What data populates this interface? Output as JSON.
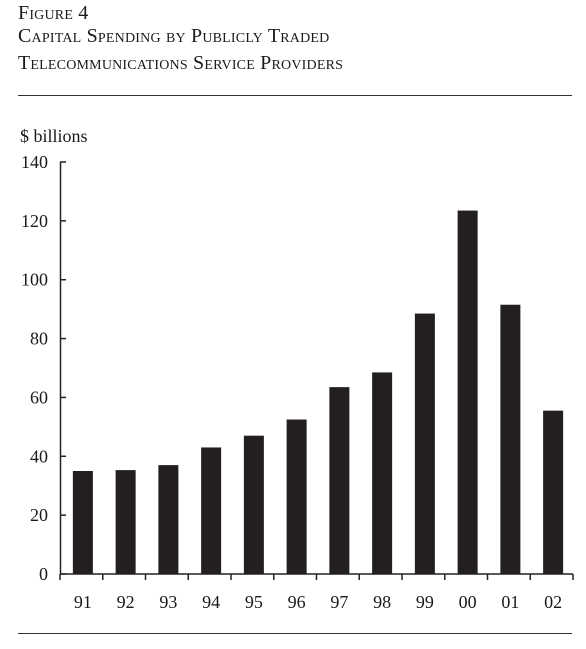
{
  "figure": {
    "label": "Figure 4",
    "title_line_1": "Capital Spending by Publicly Traded",
    "title_line_2": "Telecommunications Service Providers"
  },
  "chart_data": {
    "type": "bar",
    "title": "Capital Spending by Publicly Traded Telecommunications Service Providers",
    "ylabel": "$ billions",
    "xlabel": "",
    "categories": [
      "91",
      "92",
      "93",
      "94",
      "95",
      "96",
      "97",
      "98",
      "99",
      "00",
      "01",
      "02"
    ],
    "values": [
      35,
      35.3,
      37,
      43,
      47,
      52.5,
      63.5,
      68.5,
      88.5,
      123.5,
      91.5,
      55.5
    ],
    "ylim": [
      0,
      140
    ],
    "yticks": [
      0,
      20,
      40,
      60,
      80,
      100,
      120,
      140
    ],
    "grid": false,
    "bar_color": "#231f20"
  }
}
